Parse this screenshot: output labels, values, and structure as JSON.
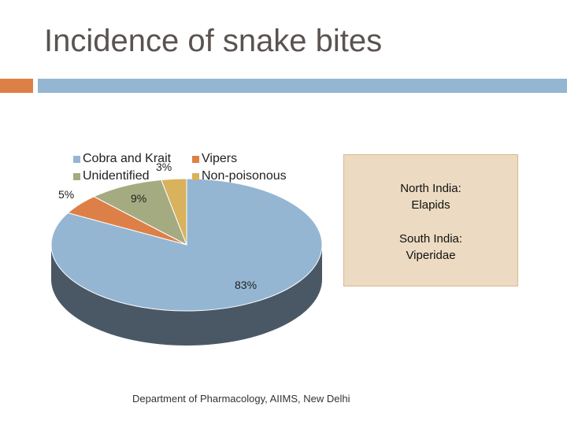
{
  "title": "Incidence of snake bites",
  "footer": "Department of Pharmacology, AIIMS, New Delhi",
  "info_box": {
    "north_label": "North India:",
    "north_value": "Elapids",
    "south_label": "South India:",
    "south_value": "Viperidae"
  },
  "colors": {
    "title": "#5a5350",
    "accent_orange": "#dd8047",
    "accent_blue": "#94b6d2",
    "info_box_bg": "#ecdbc2"
  },
  "chart_data": {
    "type": "pie",
    "style": "3d",
    "legend_position": "top-left",
    "categories": [
      "Cobra and Krait",
      "Vipers",
      "Unidentified",
      "Non-poisonous"
    ],
    "values": [
      83,
      5,
      9,
      3
    ],
    "labels": [
      "83%",
      "5%",
      "9%",
      "3%"
    ],
    "colors": [
      "#94b6d2",
      "#dd8047",
      "#a5ab81",
      "#d8b25c"
    ],
    "side_colors": [
      "#4a5866",
      "#8c4f2a",
      "#6a6e50",
      "#8c7238"
    ]
  }
}
